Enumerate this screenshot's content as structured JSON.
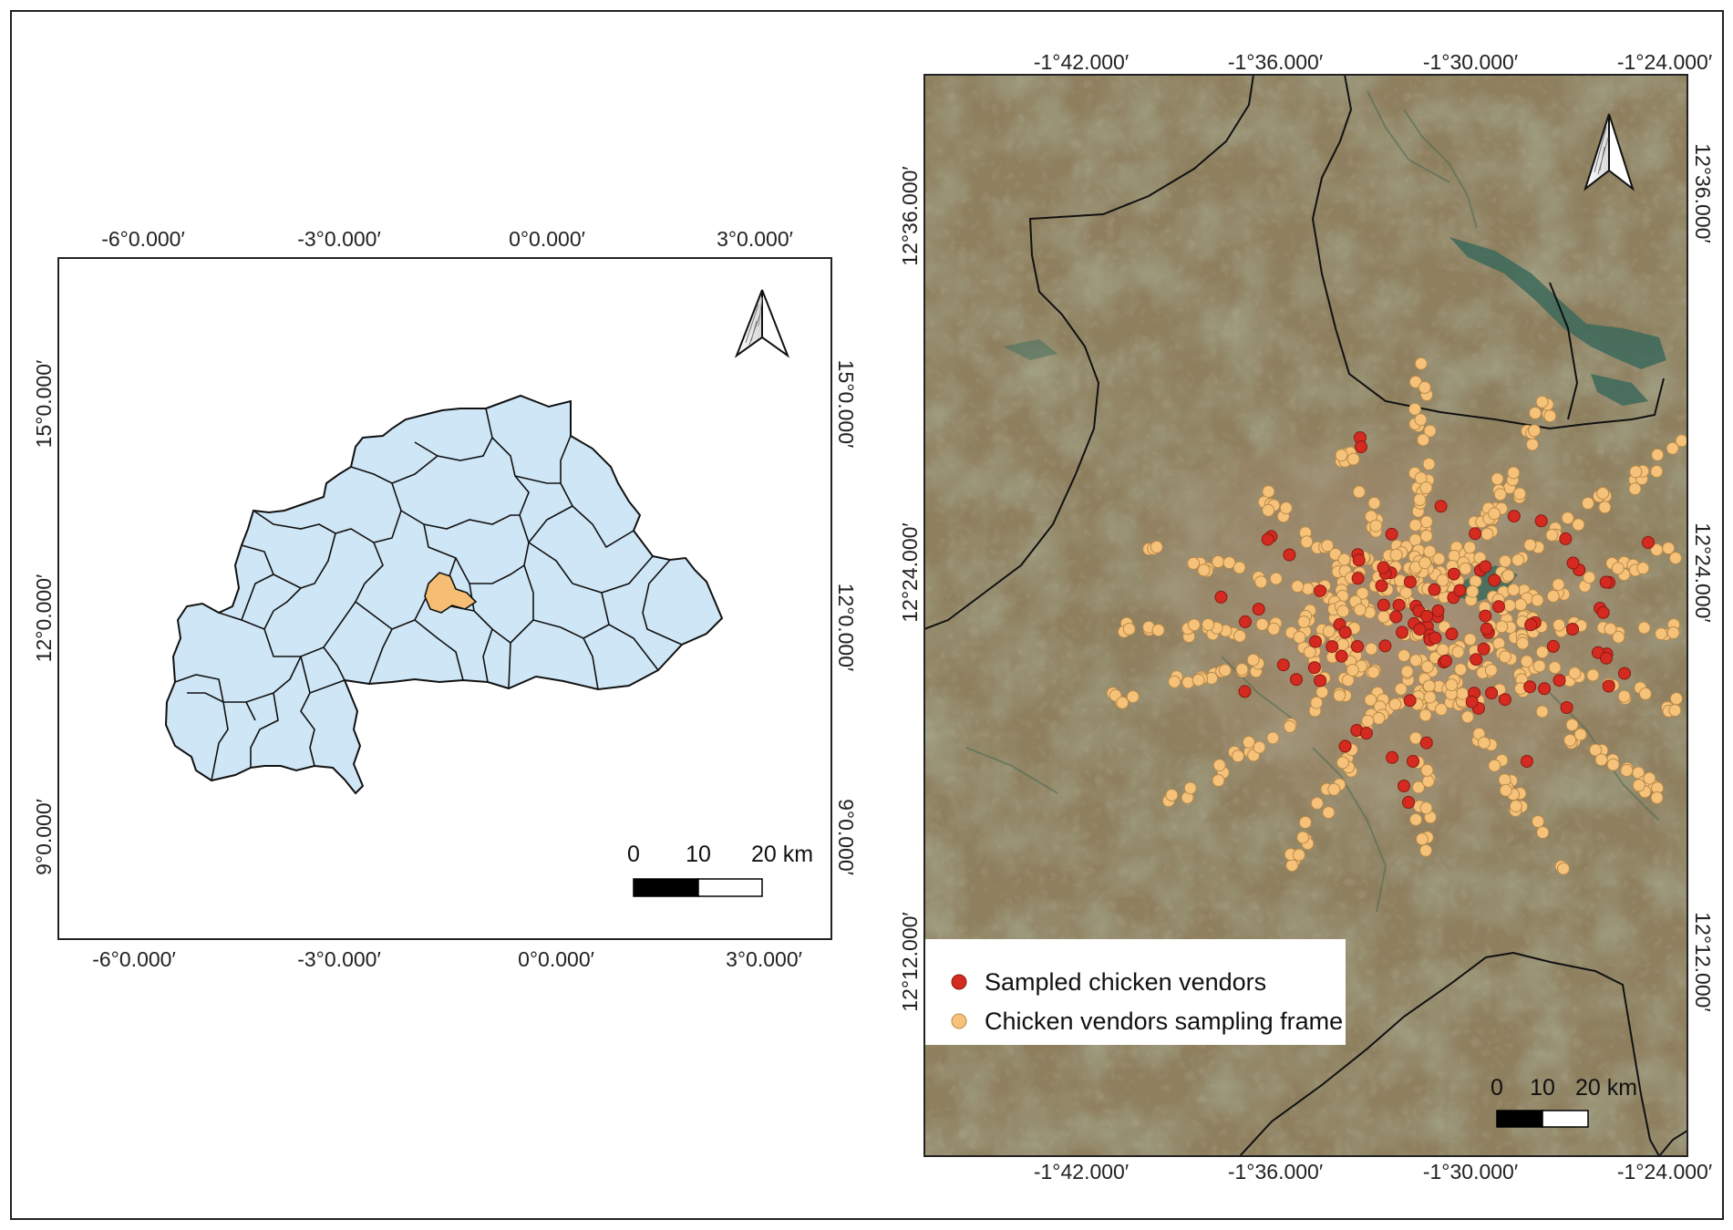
{
  "inset_map": {
    "top_ticks": [
      "-6°0.000′",
      "-3°0.000′",
      "0°0.000′",
      "3°0.000′"
    ],
    "bottom_ticks": [
      "-6°0.000′",
      "-3°0.000′",
      "0°0.000′",
      "3°0.000′"
    ],
    "left_ticks": [
      "15°0.000′",
      "12°0.000′",
      "9°0.000′"
    ],
    "right_ticks": [
      "15°0.000′",
      "12°0.000′",
      "9°0.000′"
    ],
    "scale_labels": [
      "0",
      "10",
      "20 km"
    ],
    "country_fill": "#cfe6f6",
    "highlight_fill": "#f5be74",
    "outline_color": "#111111"
  },
  "study_map": {
    "top_ticks": [
      "-1°42.000′",
      "-1°36.000′",
      "-1°30.000′",
      "-1°24.000′"
    ],
    "bottom_ticks": [
      "-1°42.000′",
      "-1°36.000′",
      "-1°30.000′",
      "-1°24.000′"
    ],
    "left_ticks": [
      "12°36.000′",
      "12°24.000′",
      "12°12.000′"
    ],
    "right_ticks": [
      "12°36.000′",
      "12°24.000′",
      "12°12.000′"
    ],
    "scale_labels": [
      "0",
      "10",
      "20 km"
    ],
    "legend": [
      {
        "label": "Sampled chicken vendors",
        "color": "#d42a20"
      },
      {
        "label": "Chicken vendors sampling frame",
        "color": "#f6c27a"
      }
    ],
    "background_color": "#8e7f5e"
  },
  "icons": {
    "north_arrow": "north-arrow-icon"
  }
}
